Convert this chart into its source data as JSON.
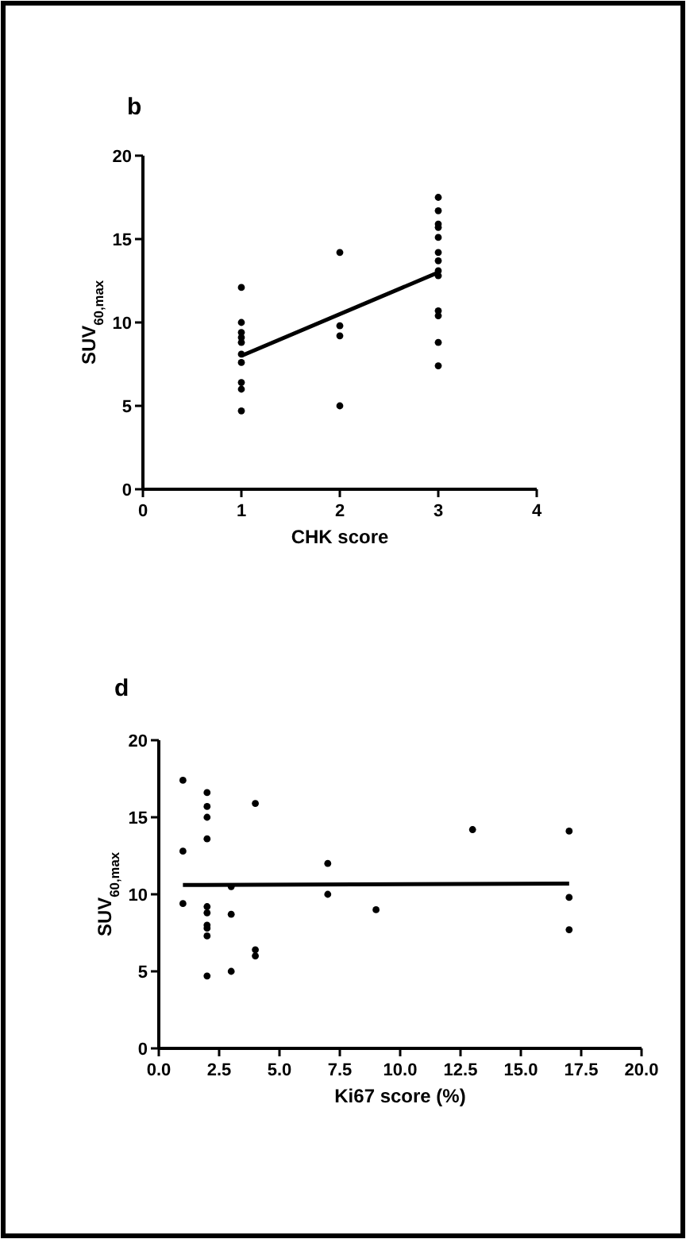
{
  "chart_data": [
    {
      "type": "scatter",
      "title": "b",
      "xlabel": "CHK score",
      "ylabel": "SUV$_{60,max}$",
      "xlim": [
        0,
        4
      ],
      "xticks": [
        0,
        1,
        2,
        3,
        4
      ],
      "ylim": [
        0,
        20
      ],
      "yticks": [
        0,
        5,
        10,
        15,
        20
      ],
      "grid": false,
      "series": [
        {
          "color": "#000000",
          "marker": "circle",
          "x": [
            1,
            1,
            1,
            1,
            1,
            1,
            1,
            1,
            1,
            1,
            2,
            2,
            2,
            2,
            3,
            3,
            3,
            3,
            3,
            3,
            3,
            3,
            3,
            3,
            3,
            3,
            3
          ],
          "values": [
            12.1,
            10.0,
            9.4,
            9.1,
            8.8,
            8.1,
            7.6,
            6.4,
            6.0,
            4.7,
            14.2,
            9.8,
            9.2,
            5.0,
            17.5,
            16.7,
            15.9,
            15.7,
            15.1,
            14.2,
            13.7,
            13.1,
            12.8,
            10.7,
            10.4,
            8.8,
            7.4
          ]
        },
        {
          "type": "line",
          "color": "#000000",
          "marker": "none",
          "line_style": "solid",
          "x": [
            1,
            3
          ],
          "values": [
            8.0,
            13.0
          ]
        }
      ]
    },
    {
      "type": "scatter",
      "title": "d",
      "xlabel": "Ki67 score (%)",
      "ylabel": "SUV$_{60,max}$",
      "xlim": [
        0,
        20
      ],
      "xticks": [
        {
          "value": 0,
          "label": "0.0"
        },
        {
          "value": 2.5,
          "label": "2.5"
        },
        {
          "value": 5,
          "label": "5.0"
        },
        {
          "value": 7.5,
          "label": "7.5"
        },
        {
          "value": 10,
          "label": "10.0"
        },
        {
          "value": 12.5,
          "label": "12.5"
        },
        {
          "value": 15,
          "label": "15.0"
        },
        {
          "value": 17.5,
          "label": "17.5"
        },
        {
          "value": 20,
          "label": "20.0"
        }
      ],
      "ylim": [
        0,
        20
      ],
      "yticks": [
        0,
        5,
        10,
        15,
        20
      ],
      "grid": false,
      "series": [
        {
          "color": "#000000",
          "marker": "circle",
          "x": [
            1,
            1,
            1,
            2,
            2,
            2,
            2,
            2,
            2,
            2,
            2,
            2,
            2,
            3,
            3,
            3,
            4,
            4,
            4,
            7,
            7,
            9,
            13,
            17,
            17,
            17
          ],
          "values": [
            17.4,
            12.8,
            9.4,
            16.6,
            15.7,
            15.0,
            13.6,
            9.2,
            8.8,
            8.0,
            7.8,
            7.3,
            4.7,
            10.5,
            8.7,
            5.0,
            15.9,
            6.4,
            6.0,
            12.0,
            10.0,
            9.0,
            14.2,
            14.1,
            9.8,
            7.7
          ]
        },
        {
          "type": "line",
          "color": "#000000",
          "marker": "none",
          "line_style": "solid",
          "x": [
            1,
            17
          ],
          "values": [
            10.6,
            10.7
          ]
        }
      ]
    }
  ]
}
